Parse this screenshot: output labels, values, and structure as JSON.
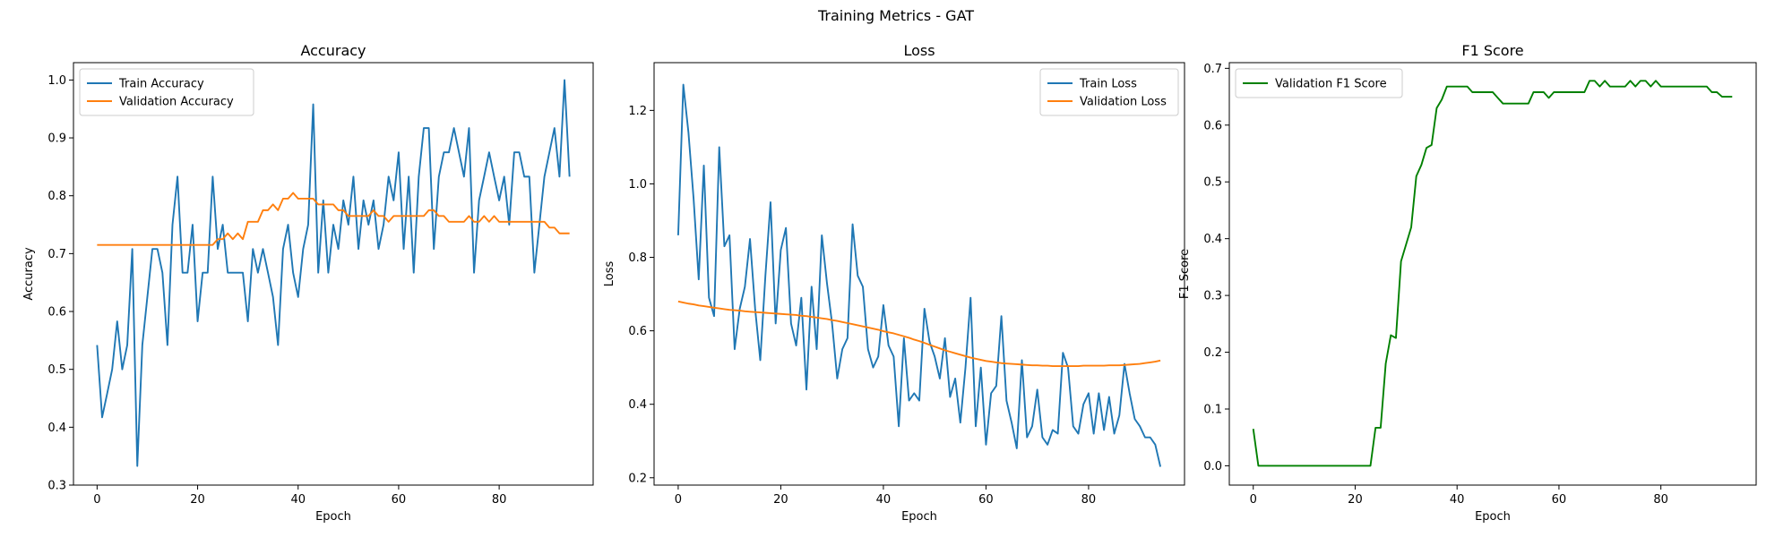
{
  "figure": {
    "title": "Training Metrics - GAT"
  },
  "colors": {
    "train": "#1f77b4",
    "validation": "#ff7f0e",
    "f1": "#008000"
  },
  "chart_data": [
    {
      "type": "line",
      "title": "Accuracy",
      "xlabel": "Epoch",
      "ylabel": "Accuracy",
      "xlim": [
        -4.7,
        98.7
      ],
      "ylim": [
        0.3,
        1.03
      ],
      "xticks": [
        0,
        20,
        40,
        60,
        80
      ],
      "yticks": [
        0.3,
        0.4,
        0.5,
        0.6,
        0.7,
        0.8,
        0.9,
        1.0
      ],
      "ytick_labels": [
        "0.3",
        "0.4",
        "0.5",
        "0.6",
        "0.7",
        "0.8",
        "0.9",
        "1.0"
      ],
      "legend": "upper left",
      "grid": false,
      "series": [
        {
          "name": "Train Accuracy",
          "color": "#1f77b4",
          "values": [
            0.542,
            0.417,
            0.458,
            0.5,
            0.583,
            0.5,
            0.542,
            0.708,
            0.333,
            0.542,
            0.625,
            0.708,
            0.708,
            0.667,
            0.542,
            0.75,
            0.833,
            0.667,
            0.667,
            0.75,
            0.583,
            0.667,
            0.667,
            0.833,
            0.708,
            0.75,
            0.667,
            0.667,
            0.667,
            0.667,
            0.583,
            0.708,
            0.667,
            0.708,
            0.667,
            0.625,
            0.542,
            0.708,
            0.75,
            0.667,
            0.625,
            0.708,
            0.75,
            0.958,
            0.667,
            0.792,
            0.667,
            0.75,
            0.708,
            0.792,
            0.75,
            0.833,
            0.708,
            0.792,
            0.75,
            0.792,
            0.708,
            0.75,
            0.833,
            0.792,
            0.875,
            0.708,
            0.833,
            0.667,
            0.833,
            0.917,
            0.917,
            0.708,
            0.833,
            0.875,
            0.875,
            0.917,
            0.875,
            0.833,
            0.917,
            0.667,
            0.792,
            0.833,
            0.875,
            0.833,
            0.792,
            0.833,
            0.75,
            0.875,
            0.875,
            0.833,
            0.833,
            0.667,
            0.75,
            0.833,
            0.875,
            0.917,
            0.833,
            1.0,
            0.833
          ]
        },
        {
          "name": "Validation Accuracy",
          "color": "#ff7f0e",
          "values": [
            0.715,
            0.715,
            0.715,
            0.715,
            0.715,
            0.715,
            0.715,
            0.715,
            0.715,
            0.715,
            0.715,
            0.715,
            0.715,
            0.715,
            0.715,
            0.715,
            0.715,
            0.715,
            0.715,
            0.715,
            0.715,
            0.715,
            0.715,
            0.715,
            0.725,
            0.725,
            0.735,
            0.725,
            0.735,
            0.725,
            0.755,
            0.755,
            0.755,
            0.775,
            0.775,
            0.785,
            0.775,
            0.795,
            0.795,
            0.805,
            0.795,
            0.795,
            0.795,
            0.795,
            0.785,
            0.785,
            0.785,
            0.785,
            0.775,
            0.775,
            0.765,
            0.765,
            0.765,
            0.765,
            0.765,
            0.775,
            0.765,
            0.765,
            0.755,
            0.765,
            0.765,
            0.765,
            0.765,
            0.765,
            0.765,
            0.765,
            0.775,
            0.775,
            0.765,
            0.765,
            0.755,
            0.755,
            0.755,
            0.755,
            0.765,
            0.755,
            0.755,
            0.765,
            0.755,
            0.765,
            0.755,
            0.755,
            0.755,
            0.755,
            0.755,
            0.755,
            0.755,
            0.755,
            0.755,
            0.755,
            0.745,
            0.745,
            0.735,
            0.735,
            0.735
          ]
        }
      ]
    },
    {
      "type": "line",
      "title": "Loss",
      "xlabel": "Epoch",
      "ylabel": "Loss",
      "xlim": [
        -4.7,
        98.7
      ],
      "ylim": [
        0.18,
        1.33
      ],
      "xticks": [
        0,
        20,
        40,
        60,
        80
      ],
      "yticks": [
        0.2,
        0.4,
        0.6,
        0.8,
        1.0,
        1.2
      ],
      "ytick_labels": [
        "0.2",
        "0.4",
        "0.6",
        "0.8",
        "1.0",
        "1.2"
      ],
      "legend": "upper right",
      "grid": false,
      "series": [
        {
          "name": "Train Loss",
          "color": "#1f77b4",
          "values": [
            0.86,
            1.27,
            1.14,
            0.96,
            0.74,
            1.05,
            0.69,
            0.64,
            1.1,
            0.83,
            0.86,
            0.55,
            0.66,
            0.72,
            0.85,
            0.66,
            0.52,
            0.75,
            0.95,
            0.62,
            0.82,
            0.88,
            0.62,
            0.56,
            0.69,
            0.44,
            0.72,
            0.55,
            0.86,
            0.73,
            0.62,
            0.47,
            0.55,
            0.58,
            0.89,
            0.75,
            0.72,
            0.55,
            0.5,
            0.53,
            0.67,
            0.56,
            0.53,
            0.34,
            0.58,
            0.41,
            0.43,
            0.41,
            0.66,
            0.57,
            0.53,
            0.47,
            0.58,
            0.42,
            0.47,
            0.35,
            0.5,
            0.69,
            0.34,
            0.5,
            0.29,
            0.43,
            0.45,
            0.64,
            0.41,
            0.35,
            0.28,
            0.52,
            0.31,
            0.34,
            0.44,
            0.31,
            0.29,
            0.33,
            0.32,
            0.54,
            0.5,
            0.34,
            0.32,
            0.4,
            0.43,
            0.32,
            0.43,
            0.33,
            0.42,
            0.32,
            0.37,
            0.51,
            0.43,
            0.36,
            0.34,
            0.31,
            0.31,
            0.29,
            0.23
          ]
        },
        {
          "name": "Validation Loss",
          "color": "#ff7f0e",
          "values": [
            0.68,
            0.677,
            0.674,
            0.672,
            0.669,
            0.667,
            0.665,
            0.663,
            0.661,
            0.659,
            0.657,
            0.656,
            0.655,
            0.653,
            0.652,
            0.651,
            0.65,
            0.649,
            0.648,
            0.647,
            0.646,
            0.645,
            0.644,
            0.643,
            0.641,
            0.64,
            0.638,
            0.636,
            0.634,
            0.632,
            0.629,
            0.627,
            0.624,
            0.621,
            0.618,
            0.615,
            0.612,
            0.609,
            0.606,
            0.603,
            0.599,
            0.596,
            0.593,
            0.589,
            0.585,
            0.581,
            0.576,
            0.572,
            0.567,
            0.562,
            0.557,
            0.552,
            0.547,
            0.543,
            0.539,
            0.535,
            0.531,
            0.527,
            0.524,
            0.521,
            0.518,
            0.516,
            0.514,
            0.512,
            0.511,
            0.51,
            0.509,
            0.508,
            0.507,
            0.506,
            0.506,
            0.505,
            0.505,
            0.504,
            0.504,
            0.504,
            0.504,
            0.504,
            0.504,
            0.505,
            0.505,
            0.505,
            0.505,
            0.505,
            0.506,
            0.506,
            0.506,
            0.507,
            0.508,
            0.509,
            0.51,
            0.512,
            0.514,
            0.516,
            0.519
          ]
        }
      ]
    },
    {
      "type": "line",
      "title": "F1 Score",
      "xlabel": "Epoch",
      "ylabel": "F1 Score",
      "xlim": [
        -4.7,
        98.7
      ],
      "ylim": [
        -0.034,
        0.71
      ],
      "xticks": [
        0,
        20,
        40,
        60,
        80
      ],
      "yticks": [
        0.0,
        0.1,
        0.2,
        0.3,
        0.4,
        0.5,
        0.6,
        0.7
      ],
      "ytick_labels": [
        "0.0",
        "0.1",
        "0.2",
        "0.3",
        "0.4",
        "0.5",
        "0.6",
        "0.7"
      ],
      "legend": "upper left",
      "grid": false,
      "series": [
        {
          "name": "Validation F1 Score",
          "color": "#008000",
          "values": [
            0.065,
            0.0,
            0.0,
            0.0,
            0.0,
            0.0,
            0.0,
            0.0,
            0.0,
            0.0,
            0.0,
            0.0,
            0.0,
            0.0,
            0.0,
            0.0,
            0.0,
            0.0,
            0.0,
            0.0,
            0.0,
            0.0,
            0.0,
            0.0,
            0.067,
            0.067,
            0.18,
            0.23,
            0.225,
            0.36,
            0.39,
            0.42,
            0.51,
            0.53,
            0.56,
            0.565,
            0.63,
            0.645,
            0.668,
            0.668,
            0.668,
            0.668,
            0.668,
            0.658,
            0.658,
            0.658,
            0.658,
            0.658,
            0.648,
            0.638,
            0.638,
            0.638,
            0.638,
            0.638,
            0.638,
            0.658,
            0.658,
            0.658,
            0.648,
            0.658,
            0.658,
            0.658,
            0.658,
            0.658,
            0.658,
            0.658,
            0.678,
            0.678,
            0.668,
            0.678,
            0.668,
            0.668,
            0.668,
            0.668,
            0.678,
            0.668,
            0.678,
            0.678,
            0.668,
            0.678,
            0.668,
            0.668,
            0.668,
            0.668,
            0.668,
            0.668,
            0.668,
            0.668,
            0.668,
            0.668,
            0.658,
            0.658,
            0.65,
            0.65,
            0.65
          ]
        }
      ]
    }
  ]
}
